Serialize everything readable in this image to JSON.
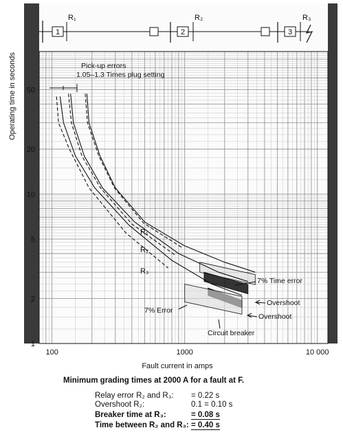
{
  "chart_data": {
    "type": "line",
    "xlabel": "Fault current in amps",
    "ylabel": "Operating time in seconds",
    "x_scale": "log",
    "y_scale": "log",
    "xlim": [
      80,
      12000
    ],
    "ylim": [
      1,
      90
    ],
    "x_tick_labels": [
      "100",
      "1000",
      "10 000"
    ],
    "x_ticks": [
      100,
      1000,
      10000
    ],
    "y_tick_labels": [
      "1",
      "2",
      "5",
      "10",
      "20",
      "50"
    ],
    "y_ticks": [
      1,
      2,
      5,
      10,
      20,
      50
    ],
    "grid": true,
    "series": [
      {
        "name": "R1",
        "style": "solid",
        "points": [
          [
            183,
            47
          ],
          [
            190,
            30
          ],
          [
            230,
            18
          ],
          [
            300,
            11
          ],
          [
            500,
            6.5
          ],
          [
            1000,
            4.5
          ],
          [
            2000,
            3.5
          ],
          [
            3400,
            3.0
          ]
        ]
      },
      {
        "name": "R2",
        "style": "solid",
        "points": [
          [
            138,
            47
          ],
          [
            145,
            30
          ],
          [
            175,
            18
          ],
          [
            240,
            11
          ],
          [
            420,
            6.5
          ],
          [
            900,
            4.0
          ],
          [
            1800,
            3.0
          ],
          [
            3000,
            2.6
          ]
        ]
      },
      {
        "name": "R3",
        "style": "solid",
        "points": [
          [
            115,
            45
          ],
          [
            122,
            30
          ],
          [
            150,
            18
          ],
          [
            210,
            11
          ],
          [
            380,
            6.2
          ],
          [
            800,
            3.6
          ],
          [
            1600,
            2.5
          ],
          [
            2700,
            2.1
          ]
        ]
      },
      {
        "name": "R1-band",
        "style": "dashed",
        "points": [
          [
            178,
            47
          ],
          [
            185,
            30
          ],
          [
            225,
            18
          ],
          [
            295,
            11
          ],
          [
            490,
            6.4
          ],
          [
            950,
            4.4
          ]
        ]
      },
      {
        "name": "R2-band",
        "style": "dashed",
        "points": [
          [
            133,
            47
          ],
          [
            140,
            30
          ],
          [
            168,
            18
          ],
          [
            232,
            11
          ],
          [
            400,
            6.3
          ],
          [
            850,
            3.9
          ]
        ]
      },
      {
        "name": "R3-band",
        "style": "dashed",
        "points": [
          [
            108,
            45
          ],
          [
            112,
            30
          ],
          [
            135,
            20
          ],
          [
            190,
            11
          ],
          [
            360,
            5.5
          ],
          [
            750,
            3.2
          ]
        ]
      }
    ],
    "bands": [
      {
        "label": "7% Time error",
        "x": [
          1300,
          3400
        ],
        "y": [
          3.0,
          3.5
        ]
      },
      {
        "label": "Overshoot",
        "x": [
          1400,
          3000
        ],
        "y": [
          2.6,
          3.0
        ]
      },
      {
        "label": "Overshoot",
        "x": [
          1500,
          2700
        ],
        "y": [
          2.1,
          2.35
        ]
      },
      {
        "label": "7% Error",
        "x": [
          1000,
          2700
        ],
        "y": [
          1.9,
          2.5
        ]
      }
    ],
    "labels": {
      "r1": "R₁",
      "r2": "R₂",
      "r3": "R₃",
      "pickup_line1": "Pick-up errors",
      "pickup_line2": "1.05–1.3 Times plug setting",
      "time_error": "7% Time error",
      "overshoot1": "Overshoot",
      "overshoot2": "Overshoot",
      "error7": "7% Error",
      "circuit_breaker": "Circuit breaker"
    },
    "single_line": {
      "relays": [
        "R₁",
        "R₂",
        "R₃"
      ],
      "boxes": [
        "1",
        "2",
        "3"
      ]
    }
  },
  "summary": {
    "title": "Minimum grading times at 2000 A for a fault at F.",
    "rows": [
      {
        "label": "Relay error R₂ and R₃:",
        "value": "= 0.22 s",
        "bold": false
      },
      {
        "label": "Overshoot R₂:",
        "value": "0.1 = 0.10 s",
        "bold": false
      },
      {
        "label": "Breaker time at R₃:",
        "value": "= 0.08 s",
        "bold": true
      },
      {
        "label": "Time between R₂ and R₃:",
        "value": "= 0.40 s",
        "bold": true
      }
    ]
  }
}
